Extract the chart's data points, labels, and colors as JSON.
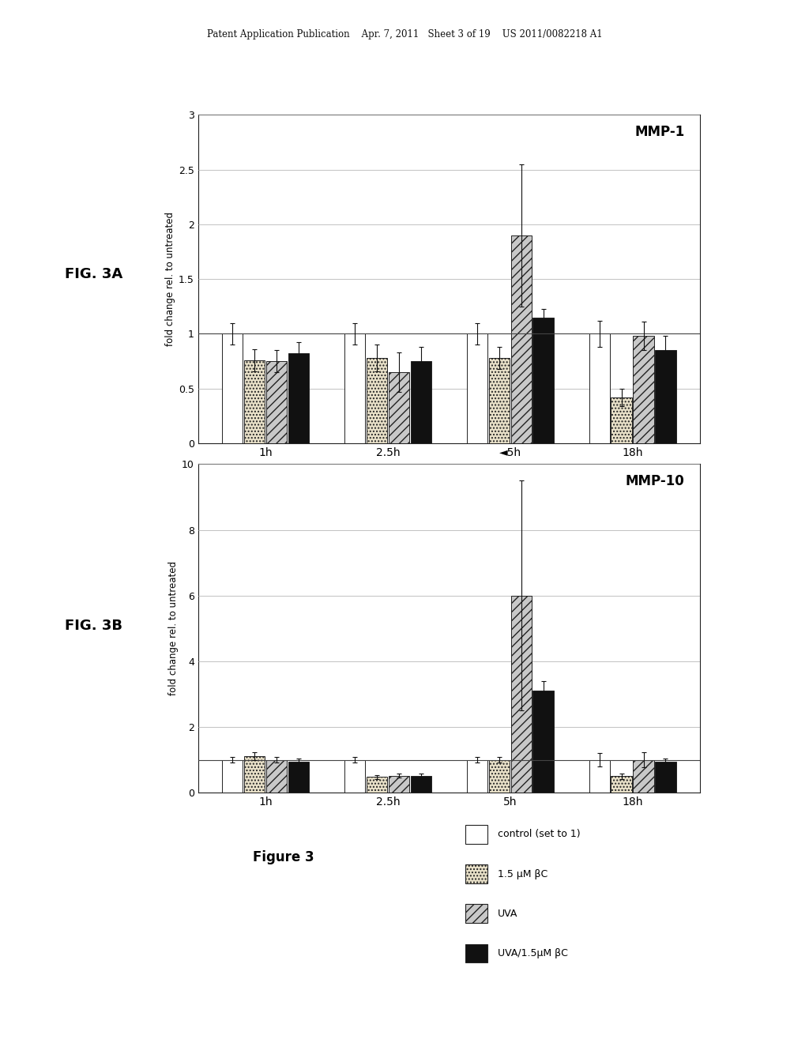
{
  "header_text": "Patent Application Publication    Apr. 7, 2011   Sheet 3 of 19    US 2011/0082218 A1",
  "fig_a_label": "FIG. 3A",
  "fig_b_label": "FIG. 3B",
  "fig_a_title": "MMP-1",
  "fig_b_title": "MMP-10",
  "ylabel": "fold change rel. to untreated",
  "x_tick_a": [
    "1h",
    "2.5h",
    "◄5h",
    "18h"
  ],
  "x_tick_b": [
    "1h",
    "2.5h",
    "5h",
    "18h"
  ],
  "figure_caption": "Figure 3",
  "legend_labels": [
    "control (set to 1)",
    "1.5 μM βC",
    "UVA",
    "UVA/1.5μM βC"
  ],
  "mmp1_values": {
    "control": [
      1.0,
      1.0,
      1.0,
      1.0
    ],
    "betaC": [
      0.76,
      0.78,
      0.78,
      0.42
    ],
    "UVA": [
      0.75,
      0.65,
      1.9,
      0.98
    ],
    "UVA_betaC": [
      0.82,
      0.75,
      1.15,
      0.85
    ]
  },
  "mmp1_errors": {
    "control": [
      0.1,
      0.1,
      0.1,
      0.12
    ],
    "betaC": [
      0.1,
      0.12,
      0.1,
      0.08
    ],
    "UVA": [
      0.1,
      0.18,
      0.65,
      0.13
    ],
    "UVA_betaC": [
      0.1,
      0.13,
      0.08,
      0.13
    ]
  },
  "mmp10_values": {
    "control": [
      1.0,
      1.0,
      1.0,
      1.0
    ],
    "betaC": [
      1.1,
      0.48,
      1.0,
      0.5
    ],
    "UVA": [
      1.0,
      0.52,
      6.0,
      1.0
    ],
    "UVA_betaC": [
      0.95,
      0.52,
      3.1,
      0.95
    ]
  },
  "mmp10_errors": {
    "control": [
      0.08,
      0.08,
      0.08,
      0.2
    ],
    "betaC": [
      0.12,
      0.06,
      0.08,
      0.08
    ],
    "UVA": [
      0.08,
      0.06,
      3.5,
      0.22
    ],
    "UVA_betaC": [
      0.08,
      0.06,
      0.3,
      0.08
    ]
  },
  "mmp1_ylim": [
    0,
    3
  ],
  "mmp1_yticks": [
    0,
    0.5,
    1.0,
    1.5,
    2.0,
    2.5,
    3.0
  ],
  "mmp10_ylim": [
    0,
    10
  ],
  "mmp10_yticks": [
    0,
    2,
    4,
    6,
    8,
    10
  ],
  "bar_colors": [
    "#ffffff",
    "#e8e0c8",
    "#c8c8c8",
    "#111111"
  ],
  "bar_hatches": [
    "",
    "....",
    "///",
    ""
  ],
  "bar_edgecolor": "#222222",
  "bar_width": 0.17,
  "background_color": "#ffffff"
}
